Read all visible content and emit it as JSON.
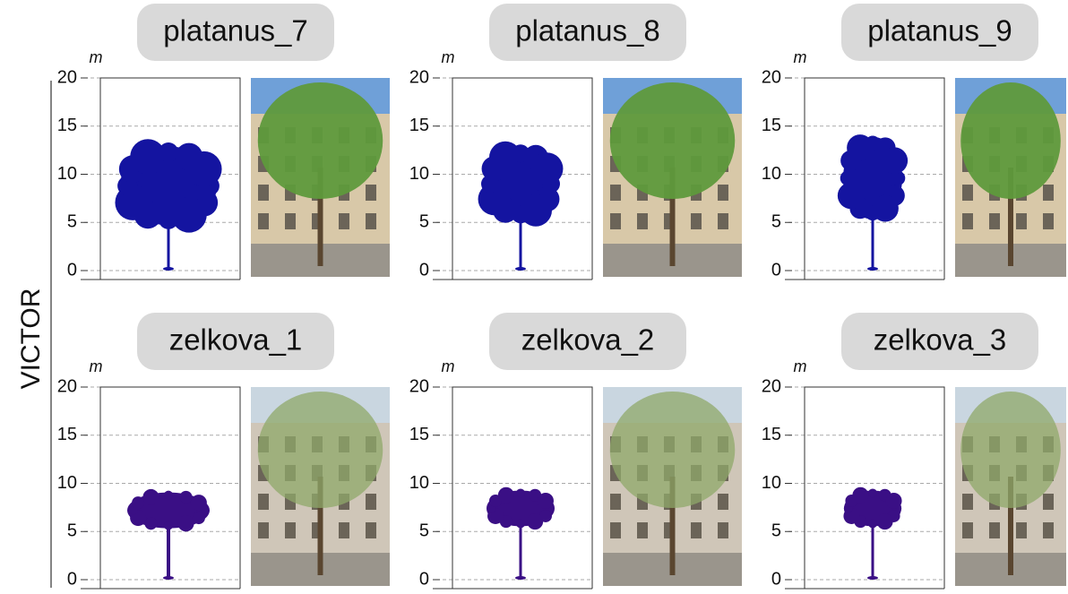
{
  "side_label": "VICTOR",
  "axis": {
    "unit": "m",
    "ylim": [
      0,
      20
    ],
    "yticks": [
      0,
      5,
      10,
      15,
      20
    ]
  },
  "panels": [
    {
      "title": "platanus_7",
      "color": "#1414a0"
    },
    {
      "title": "platanus_8",
      "color": "#1414a0"
    },
    {
      "title": "platanus_9",
      "color": "#1414a0"
    },
    {
      "title": "zelkova_1",
      "color": "#3a0f85"
    },
    {
      "title": "zelkova_2",
      "color": "#3a0f85"
    },
    {
      "title": "zelkova_3",
      "color": "#3a0f85"
    }
  ]
}
